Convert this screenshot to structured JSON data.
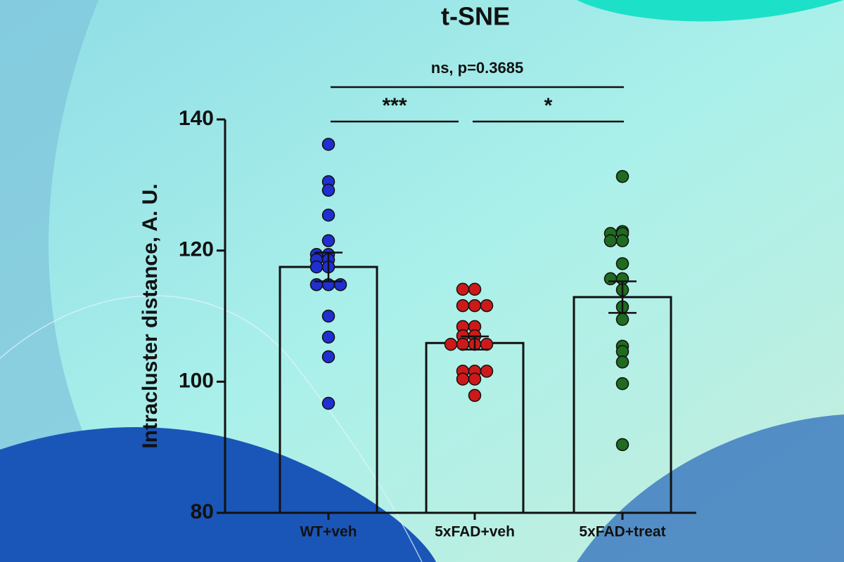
{
  "chart_data": {
    "type": "bar",
    "title": "t-SNE",
    "y_label": "Intracluster distance, A. U.",
    "categories": [
      "WT+veh",
      "5xFAD+veh",
      "5xFAD+treat"
    ],
    "values": [
      117.5,
      105.9,
      112.9
    ],
    "errors": [
      2.2,
      1.0,
      2.4
    ],
    "points": [
      [
        136.2,
        130.5,
        129.2,
        125.4,
        121.5,
        119.4,
        119.4,
        118.6,
        118.6,
        117.5,
        117.5,
        114.8,
        114.8,
        114.8,
        110.0,
        106.8,
        103.8,
        96.7
      ],
      [
        114.1,
        114.1,
        111.6,
        111.6,
        111.6,
        108.4,
        108.4,
        107.0,
        107.0,
        105.7,
        105.7,
        105.7,
        105.7,
        101.6,
        101.6,
        101.6,
        100.4,
        100.4,
        97.9
      ],
      [
        131.3,
        122.9,
        122.6,
        122.6,
        121.5,
        121.5,
        118.0,
        115.7,
        115.7,
        114.0,
        111.4,
        109.5,
        105.4,
        104.6,
        103.0,
        99.7,
        90.4
      ]
    ],
    "point_colors": [
      "#1f2fd0",
      "#cc1a1a",
      "#1f6b1f"
    ],
    "annotations": [
      "ns, p=0.3685",
      "***",
      "*"
    ],
    "ylim": [
      80,
      140
    ],
    "yticks": [
      80,
      100,
      120,
      140
    ]
  }
}
